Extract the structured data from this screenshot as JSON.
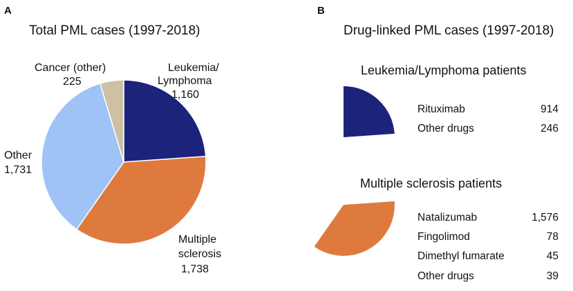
{
  "chart_data": [
    {
      "panel": "A",
      "type": "pie",
      "title": "Total PML cases (1997-2018)",
      "slices": [
        {
          "name": "Leukemia/ Lymphoma",
          "label_lines": [
            "Leukemia/",
            "Lymphoma"
          ],
          "value_text": "1,160",
          "value": 1160,
          "color": "#1b237b"
        },
        {
          "name": "Multiple sclerosis",
          "label_lines": [
            "Multiple",
            "sclerosis"
          ],
          "value_text": "1,738",
          "value": 1738,
          "color": "#df7a3f"
        },
        {
          "name": "Other",
          "label_lines": [
            "Other"
          ],
          "value_text": "1,731",
          "value": 1731,
          "color": "#9fc3f6"
        },
        {
          "name": "Cancer (other)",
          "label_lines": [
            "Cancer (other)"
          ],
          "value_text": "225",
          "value": 225,
          "color": "#cdc0a3"
        }
      ]
    },
    {
      "panel": "B",
      "type": "table",
      "title": "Drug-linked PML cases (1997-2018)",
      "groups": [
        {
          "title": "Leukemia/Lymphoma patients",
          "color": "#1b237b",
          "rows": [
            {
              "drug": "Rituximab",
              "value": "914"
            },
            {
              "drug": "Other drugs",
              "value": "246"
            }
          ]
        },
        {
          "title": "Multiple sclerosis patients",
          "color": "#df7a3f",
          "rows": [
            {
              "drug": "Natalizumab",
              "value": "1,576"
            },
            {
              "drug": "Fingolimod",
              "value": "78"
            },
            {
              "drug": "Dimethyl fumarate",
              "value": "45"
            },
            {
              "drug": "Other drugs",
              "value": "39"
            }
          ]
        }
      ]
    }
  ]
}
